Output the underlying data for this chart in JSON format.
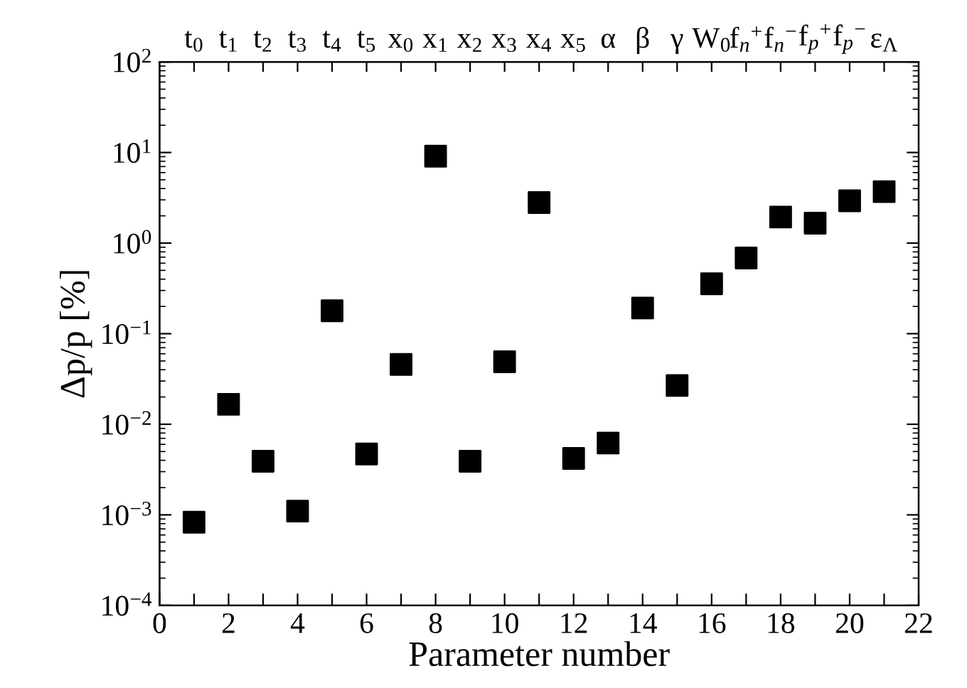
{
  "chart_data": {
    "type": "scatter",
    "x2label": "Parameter number",
    "ylabel": "Δp/p [%]",
    "log": "y",
    "marker": "square",
    "categories": [
      "t$_{0}$",
      "t$_{1}$",
      "t$_{2}$",
      "t$_{3}$",
      "t$_{4}$",
      "t$_{5}$",
      "x$_{0}$",
      "x$_{1}$",
      "x$_{2}$",
      "x$_{3}$",
      "x$_{4}$",
      "x$_{5}$",
      "α",
      "β",
      "γ",
      "W$_{0}$",
      "f$_{n}$$^{+}$",
      "f$_{n}$$^{−}$",
      "f$_{p}$$^{+}$",
      "f$_{p}$$^{−}$",
      "ε$_{Λ}$"
    ],
    "series": [
      {
        "color": "#000000",
        "values": [
          0.00083,
          0.0166,
          0.0039,
          0.0011,
          0.179,
          0.0047,
          0.0457,
          9.1,
          0.0039,
          0.049,
          2.8,
          0.0042,
          0.0062,
          0.192,
          0.0268,
          0.356,
          0.684,
          1.94,
          1.66,
          2.93,
          3.7
        ]
      }
    ],
    "x2lim": [
      0,
      22
    ],
    "x2ticks": [
      0,
      {
        "value": 1,
        "label": null
      },
      2,
      {
        "value": 3,
        "label": null
      },
      4,
      {
        "value": 5,
        "label": null
      },
      6,
      {
        "value": 7,
        "label": null
      },
      8,
      {
        "value": 9,
        "label": null
      },
      10,
      {
        "value": 11,
        "label": null
      },
      12,
      {
        "value": 13,
        "label": null
      },
      14,
      {
        "value": 15,
        "label": null
      },
      16,
      {
        "value": 17,
        "label": null
      },
      18,
      {
        "value": 19,
        "label": null
      },
      20,
      {
        "value": 21,
        "label": null
      },
      22
    ],
    "ylim": [
      0.0001,
      100
    ],
    "yticks": [
      {
        "value": 0.0001,
        "label": "10$^{−4}$"
      },
      {
        "value": 0.001,
        "label": "10$^{−3}$"
      },
      {
        "value": 0.01,
        "label": "10$^{−2}$"
      },
      {
        "value": 0.1,
        "label": "10$^{−1}$"
      },
      {
        "value": 1,
        "label": "10$^{0}$"
      },
      {
        "value": 10,
        "label": "10$^{1}$"
      },
      {
        "value": 100,
        "label": "10$^{2}$"
      }
    ]
  }
}
